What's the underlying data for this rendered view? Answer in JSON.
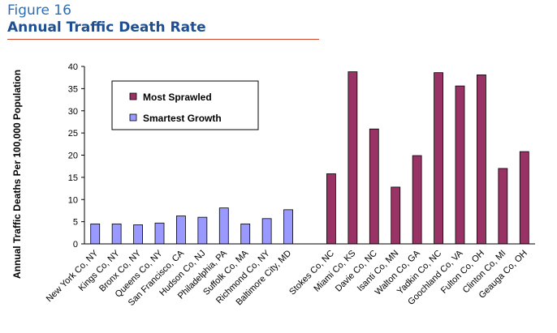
{
  "figure_label": "Figure 16",
  "figure_title": "Annual Traffic Death Rate",
  "colors": {
    "most_sprawled": "#993366",
    "smartest_growth": "#9999ff",
    "rule": "#d2472b",
    "title": "#1e4f93"
  },
  "chart_data": {
    "type": "bar",
    "title": "Annual Traffic Death Rate",
    "xlabel": "",
    "ylabel": "Annual Traffic Deaths Per 100,000 Population",
    "ylim": [
      0,
      40
    ],
    "yticks": [
      0,
      5,
      10,
      15,
      20,
      25,
      30,
      35,
      40
    ],
    "legend": {
      "position": "top-left",
      "entries": [
        "Most Sprawled",
        "Smartest Growth"
      ]
    },
    "grid": false,
    "categories": [
      "New York Co, NY",
      "Kings Co, NY",
      "Bronx Co, NY",
      "Queens Co, NY",
      "San Francisco, CA",
      "Hudson Co, NJ",
      "Philadelphia, PA",
      "Suffolk Co, MA",
      "Richmond Co, NY",
      "Baltimore City, MD",
      "",
      "Stokes Co, NC",
      "Miami Co, KS",
      "Davie Co, NC",
      "Isanti Co, MN",
      "Walton Co, GA",
      "Yadkin Co, NC",
      "Goochland Co, VA",
      "Fulton Co, OH",
      "Clinton Co, MI",
      "Geauga Co, OH"
    ],
    "series": [
      {
        "name": "Smartest Growth",
        "values": [
          4.5,
          4.5,
          4.3,
          4.7,
          6.3,
          6.0,
          8.1,
          4.5,
          5.7,
          7.7,
          null,
          null,
          null,
          null,
          null,
          null,
          null,
          null,
          null,
          null,
          null
        ]
      },
      {
        "name": "Most Sprawled",
        "values": [
          null,
          null,
          null,
          null,
          null,
          null,
          null,
          null,
          null,
          null,
          null,
          15.8,
          38.8,
          25.9,
          12.8,
          19.9,
          38.6,
          35.6,
          38.1,
          17.0,
          20.8
        ]
      }
    ]
  }
}
